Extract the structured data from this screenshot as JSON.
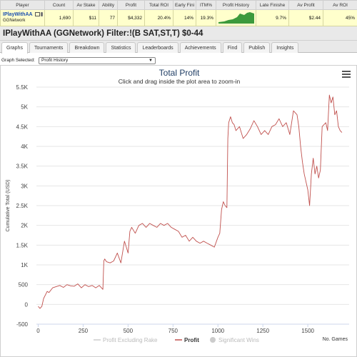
{
  "stats": {
    "headers": [
      "Player",
      "Count",
      "Av Stake",
      "Ability",
      "Profit",
      "Total ROI",
      "Early Fini",
      "ITM%",
      "Profit History",
      "Late Finishe",
      "Av Profit",
      "Av ROI"
    ],
    "row": {
      "player": "IPlayWithAA",
      "network": "GGNetwork",
      "count": "1,690",
      "av_stake": "$11",
      "ability": "77",
      "profit": "$4,332",
      "total_roi": "20.4%",
      "early_finish": "14%",
      "itm": "19.3%",
      "late_finish": "9.7%",
      "av_profit": "$2.44",
      "av_roi": "45%"
    }
  },
  "title": "IPlayWithAA (GGNetwork) Filter:!(B SAT,ST,T) $0-44",
  "tabs": [
    {
      "label": "Graphs",
      "active": true
    },
    {
      "label": "Tournaments",
      "active": false
    },
    {
      "label": "Breakdown",
      "active": false
    },
    {
      "label": "Statistics",
      "active": false
    },
    {
      "label": "Leaderboards",
      "active": false
    },
    {
      "label": "Achievements",
      "active": false
    },
    {
      "label": "Find",
      "active": false
    },
    {
      "label": "Publish",
      "active": false
    },
    {
      "label": "Insights",
      "active": false
    }
  ],
  "graph_selector": {
    "label": "Graph Selected:",
    "value": "Profit History"
  },
  "colors": {
    "profit_line": "#c0504d",
    "sparkline": "#3c9a3c",
    "title": "#1f3d64",
    "highlight_row": "#ffffcc"
  },
  "chart_data": {
    "type": "line",
    "title": "Total Profit",
    "subtitle": "Click and drag inside the plot area to zoom-in",
    "xlabel": "No. Games",
    "ylabel": "Cumulative Total (USD)",
    "xlim": [
      -10,
      1730
    ],
    "ylim": [
      -500,
      5500
    ],
    "x_ticks": [
      0,
      250,
      500,
      750,
      1000,
      1250,
      1500
    ],
    "y_ticks": [
      -500,
      0,
      500,
      1000,
      1500,
      2000,
      2500,
      3000,
      3500,
      4000,
      4500,
      5000,
      5500
    ],
    "y_tick_labels": [
      "-500",
      "0",
      "500",
      "1K",
      "1.5K",
      "2K",
      "2.5K",
      "3K",
      "3.5K",
      "4K",
      "4.5K",
      "5K",
      "5.5K"
    ],
    "legend": [
      "Profit Excluding Rake",
      "Profit",
      "Significant Wins"
    ],
    "legend_placement": "bottom-center",
    "series": [
      {
        "name": "Profit",
        "x": [
          0,
          10,
          20,
          30,
          50,
          60,
          80,
          100,
          120,
          140,
          160,
          180,
          200,
          220,
          240,
          260,
          280,
          300,
          320,
          340,
          360,
          365,
          370,
          380,
          400,
          420,
          440,
          460,
          480,
          500,
          510,
          520,
          540,
          560,
          580,
          600,
          620,
          640,
          660,
          680,
          700,
          720,
          740,
          760,
          780,
          800,
          820,
          840,
          860,
          880,
          900,
          920,
          940,
          960,
          980,
          1000,
          1010,
          1020,
          1030,
          1040,
          1050,
          1055,
          1060,
          1070,
          1080,
          1090,
          1100,
          1120,
          1140,
          1160,
          1180,
          1200,
          1220,
          1240,
          1260,
          1280,
          1300,
          1320,
          1340,
          1360,
          1380,
          1400,
          1420,
          1440,
          1450,
          1460,
          1470,
          1480,
          1500,
          1510,
          1520,
          1530,
          1540,
          1550,
          1560,
          1570,
          1580,
          1600,
          1610,
          1620,
          1630,
          1640,
          1650,
          1660,
          1670,
          1680,
          1690
        ],
        "y": [
          -50,
          -100,
          -50,
          150,
          330,
          300,
          420,
          450,
          480,
          430,
          500,
          470,
          460,
          520,
          420,
          500,
          450,
          480,
          420,
          480,
          380,
          1100,
          1150,
          1080,
          1050,
          1100,
          1300,
          1050,
          1600,
          1300,
          1850,
          1950,
          1800,
          2000,
          2050,
          1950,
          2050,
          2000,
          1950,
          2050,
          2000,
          2050,
          1950,
          1900,
          1850,
          1700,
          1750,
          1600,
          1700,
          1600,
          1550,
          1600,
          1550,
          1500,
          1450,
          1700,
          1800,
          2400,
          2600,
          2500,
          2450,
          4200,
          4600,
          4750,
          4600,
          4550,
          4400,
          4500,
          4200,
          4300,
          4450,
          4650,
          4500,
          4300,
          4400,
          4300,
          4500,
          4550,
          4700,
          4500,
          4600,
          4300,
          4900,
          4800,
          4500,
          4000,
          3600,
          3300,
          2900,
          2500,
          3300,
          3700,
          3300,
          3500,
          3200,
          3400,
          4500,
          4600,
          4400,
          5300,
          5100,
          5250,
          4800,
          4900,
          4500,
          4400,
          4350
        ]
      }
    ]
  }
}
